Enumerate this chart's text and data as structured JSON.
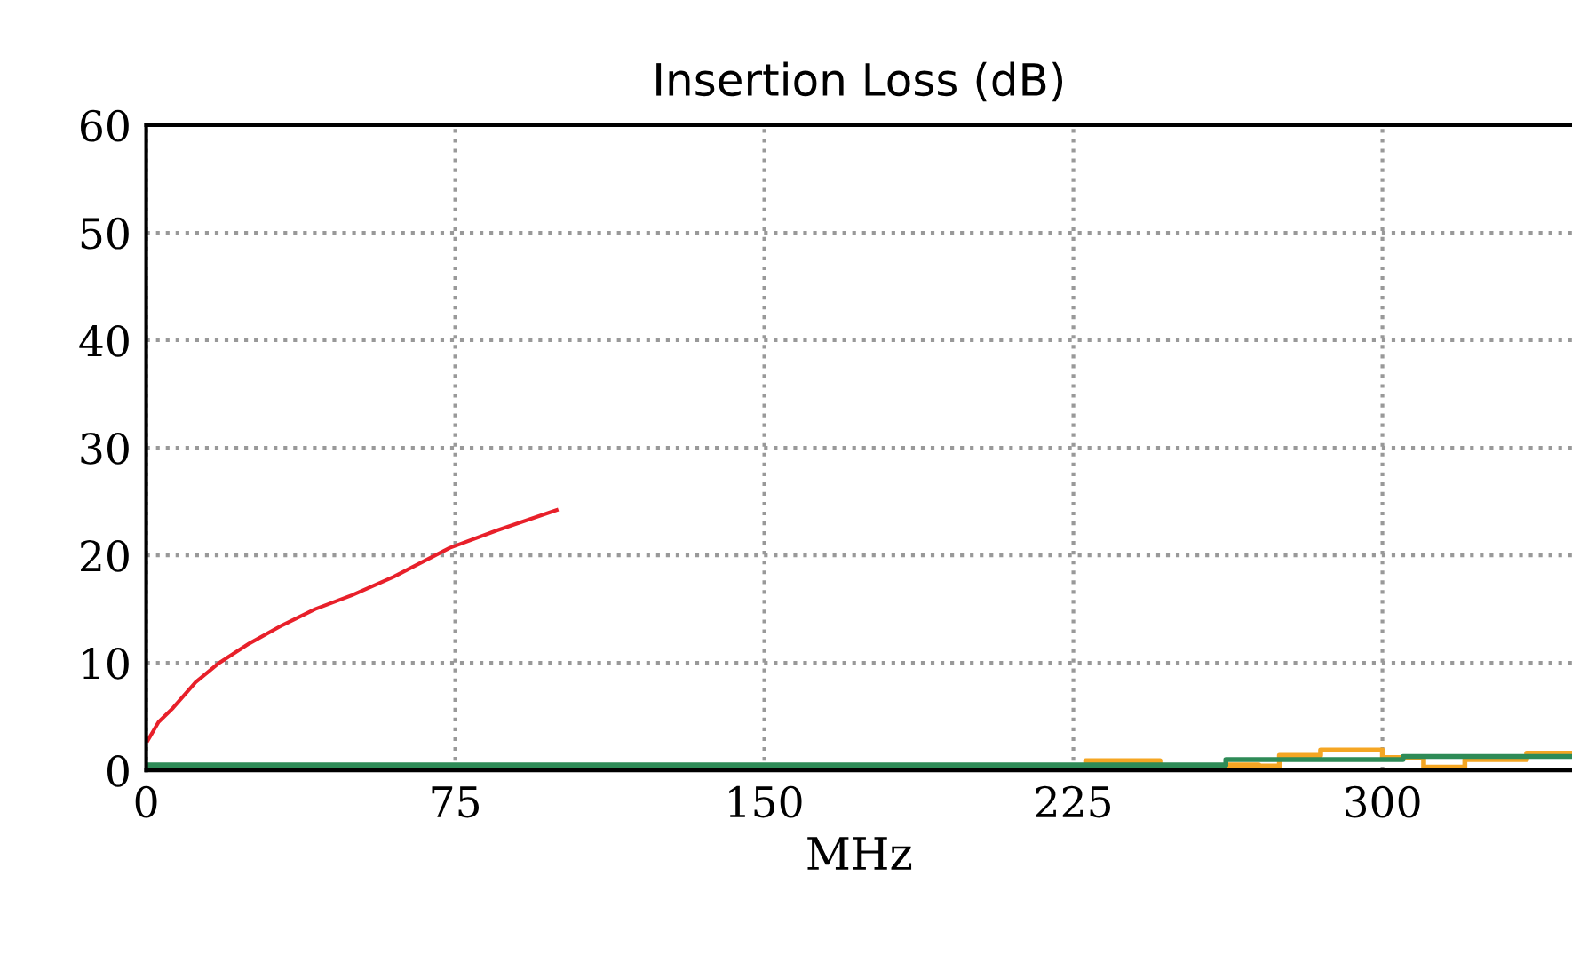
{
  "chart_data": {
    "type": "line",
    "title": "Insertion Loss (dB)",
    "xlabel": "MHz",
    "xlim": [
      0,
      346
    ],
    "xticks": [
      0,
      75,
      150,
      225,
      300
    ],
    "ylim": [
      0,
      60
    ],
    "yticks": [
      0,
      10,
      20,
      30,
      40,
      50,
      60
    ],
    "grid": true,
    "series": [
      {
        "color": "#e8202a",
        "x": [
          0.4,
          3,
          6.5,
          12,
          17.7,
          25,
          33,
          41,
          50,
          60,
          73.7,
          85,
          99.6
        ],
        "values": [
          2.8,
          4.5,
          5.8,
          8.2,
          10,
          11.8,
          13.5,
          15,
          16.3,
          18,
          20.7,
          22.3,
          24.2
        ]
      },
      {
        "color": "#f5a623",
        "type": "step",
        "x": [
          0,
          41,
          128,
          135,
          228,
          246,
          258,
          262,
          270,
          275,
          285,
          300,
          310,
          320,
          335,
          346
        ],
        "values": [
          0.1,
          0.4,
          0.2,
          0.4,
          0.9,
          0.4,
          0.0,
          0.5,
          0.4,
          1.4,
          1.9,
          1.2,
          0.3,
          1.0,
          1.6,
          1.6
        ]
      },
      {
        "color": "#2e8b57",
        "type": "step",
        "x": [
          0,
          262,
          305,
          346
        ],
        "values": [
          0.5,
          1.0,
          1.3,
          1.3
        ]
      }
    ]
  }
}
